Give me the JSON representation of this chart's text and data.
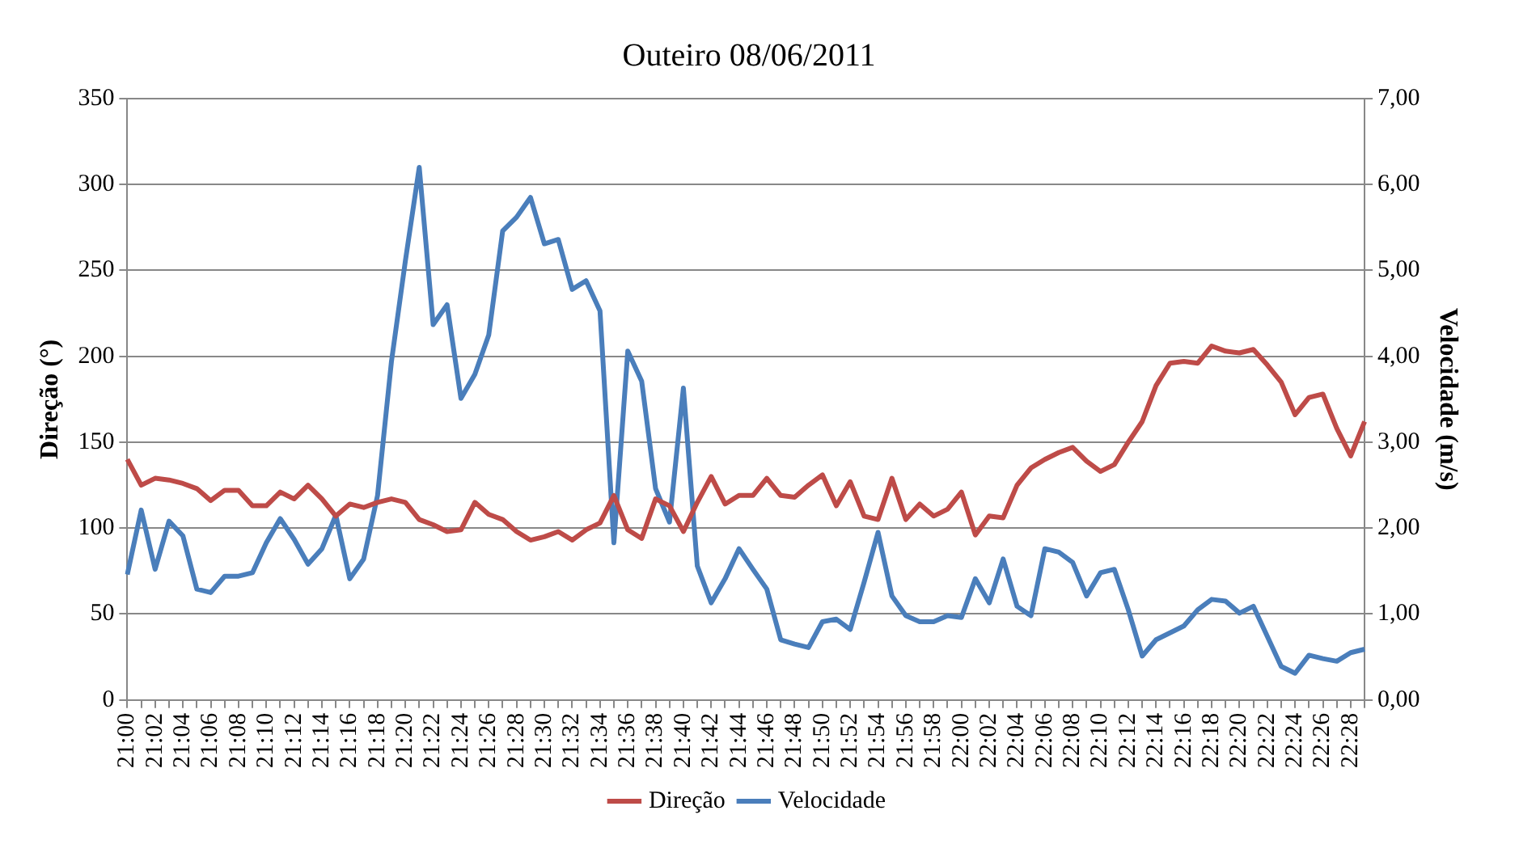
{
  "chart_data": {
    "type": "line",
    "title": "Outeiro 08/06/2011",
    "ylabel": "Direção (°)",
    "y2label": "Velocidade (m/s)",
    "categories": [
      "21:00",
      null,
      "21:02",
      null,
      "21:04",
      null,
      "21:06",
      null,
      "21:08",
      null,
      "21:10",
      null,
      "21:12",
      null,
      "21:14",
      null,
      "21:16",
      null,
      "21:18",
      null,
      "21:20",
      null,
      "21:22",
      null,
      "21:24",
      null,
      "21:26",
      null,
      "21:28",
      null,
      "21:30",
      null,
      "21:32",
      null,
      "21:34",
      null,
      "21:36",
      null,
      "21:38",
      null,
      "21:40",
      null,
      "21:42",
      null,
      "21:44",
      null,
      "21:46",
      null,
      "21:48",
      null,
      "21:50",
      null,
      "21:52",
      null,
      "21:54",
      null,
      "21:56",
      null,
      "21:58",
      null,
      "22:00",
      null,
      "22:02",
      null,
      "22:04",
      null,
      "22:06",
      null,
      "22:08",
      null,
      "22:10",
      null,
      "22:12",
      null,
      "22:14",
      null,
      "22:16",
      null,
      "22:18",
      null,
      "22:20",
      null,
      "22:22",
      null,
      "22:24",
      null,
      "22:26",
      null,
      "22:28",
      null
    ],
    "series": [
      {
        "name": "Direção",
        "color": "#be4b48",
        "values": [
          140,
          125,
          129,
          128,
          126,
          123,
          116,
          122,
          122,
          113,
          113,
          121,
          117,
          125,
          117,
          107,
          114,
          112,
          115,
          117,
          115,
          105,
          102,
          98,
          99,
          115,
          108,
          105,
          98,
          93,
          95,
          98,
          93,
          99,
          103,
          119,
          99,
          94,
          117,
          113,
          98,
          115,
          130,
          114,
          119,
          119,
          129,
          119,
          118,
          125,
          131,
          113,
          127,
          107,
          105,
          129,
          105,
          114,
          107,
          111,
          121,
          96,
          107,
          106,
          125,
          135,
          140,
          144,
          147,
          139,
          133,
          137,
          150,
          162,
          183,
          196,
          197,
          196,
          206,
          203,
          202,
          204,
          195,
          185,
          166,
          176,
          178,
          158,
          142,
          162
        ]
      },
      {
        "name": "Velocidade",
        "color": "#4a7ebb",
        "axis": "y2",
        "values": [
          1.46,
          2.21,
          1.52,
          2.08,
          1.91,
          1.29,
          1.25,
          1.44,
          1.44,
          1.48,
          1.83,
          2.11,
          1.87,
          1.58,
          1.76,
          2.15,
          1.41,
          1.64,
          2.38,
          3.94,
          5.11,
          6.2,
          4.37,
          4.6,
          3.51,
          3.79,
          4.25,
          5.46,
          5.62,
          5.85,
          5.31,
          5.36,
          4.78,
          4.88,
          4.53,
          1.83,
          4.06,
          3.71,
          2.46,
          2.07,
          3.63,
          1.56,
          1.13,
          1.41,
          1.76,
          1.52,
          1.29,
          0.7,
          0.65,
          0.61,
          0.91,
          0.94,
          0.82,
          1.37,
          1.95,
          1.21,
          0.98,
          0.91,
          0.91,
          0.98,
          0.96,
          1.41,
          1.13,
          1.64,
          1.09,
          0.98,
          1.76,
          1.72,
          1.6,
          1.21,
          1.48,
          1.52,
          1.05,
          0.51,
          0.7,
          0.78,
          0.86,
          1.05,
          1.17,
          1.15,
          1.01,
          1.09,
          0.74,
          0.39,
          0.31,
          0.52,
          0.48,
          0.45,
          0.55,
          0.59
        ]
      }
    ],
    "ylim": [
      0,
      350
    ],
    "yticks": [
      0,
      50,
      100,
      150,
      200,
      250,
      300,
      350
    ],
    "y2lim": [
      0,
      7
    ],
    "y2ticks": [
      {
        "value": 0,
        "label": "0,00"
      },
      {
        "value": 1,
        "label": "1,00"
      },
      {
        "value": 2,
        "label": "2,00"
      },
      {
        "value": 3,
        "label": "3,00"
      },
      {
        "value": 4,
        "label": "4,00"
      },
      {
        "value": 5,
        "label": "5,00"
      },
      {
        "value": 6,
        "label": "6,00"
      },
      {
        "value": 7,
        "label": "7,00"
      }
    ],
    "grid": "y",
    "legend": "bottom",
    "marker": "none",
    "line_style": "solid"
  }
}
